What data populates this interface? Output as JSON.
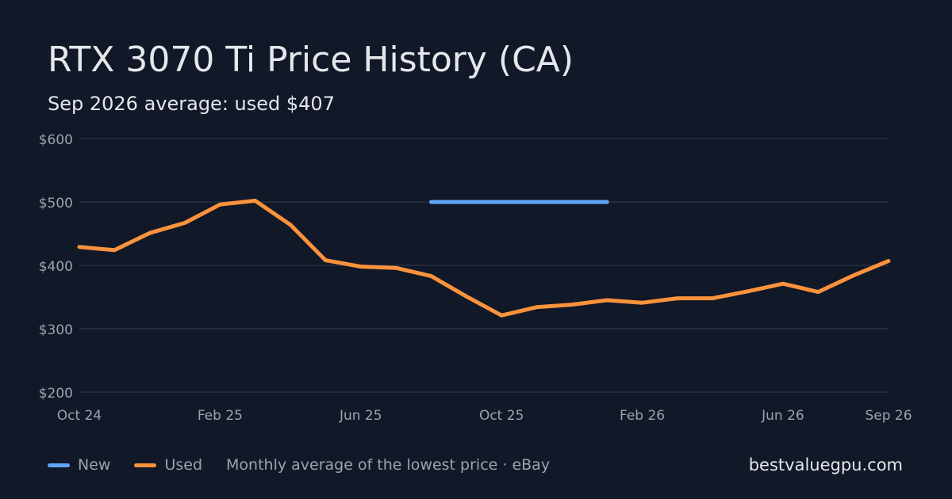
{
  "header": {
    "title": "RTX 3070 Ti Price History (CA)",
    "subtitle": "Sep 2026 average: used $407"
  },
  "legend": {
    "new_label": "New",
    "used_label": "Used",
    "note": "Monthly average of the lowest price · eBay"
  },
  "brand": "bestvaluegpu.com",
  "colors": {
    "background": "#111827",
    "grid": "#253041",
    "tick_text": "#9ca3af",
    "new": "#60a5fa",
    "used": "#fb923c"
  },
  "chart_data": {
    "type": "line",
    "x": [
      "2024-10",
      "2024-11",
      "2024-12",
      "2025-01",
      "2025-02",
      "2025-03",
      "2025-04",
      "2025-05",
      "2025-06",
      "2025-07",
      "2025-08",
      "2025-09",
      "2025-10",
      "2025-11",
      "2025-12",
      "2026-01",
      "2026-02",
      "2026-03",
      "2026-04",
      "2026-05",
      "2026-06",
      "2026-07",
      "2026-08",
      "2026-09"
    ],
    "x_ticks": [
      {
        "x": "2024-10",
        "label": "Oct 24"
      },
      {
        "x": "2025-02",
        "label": "Feb 25"
      },
      {
        "x": "2025-06",
        "label": "Jun 25"
      },
      {
        "x": "2025-10",
        "label": "Oct 25"
      },
      {
        "x": "2026-02",
        "label": "Feb 26"
      },
      {
        "x": "2026-06",
        "label": "Jun 26"
      },
      {
        "x": "2026-09",
        "label": "Sep 26"
      }
    ],
    "y_ticks": [
      200,
      300,
      400,
      500,
      600
    ],
    "y_tick_labels": [
      "$200",
      "$300",
      "$400",
      "$500",
      "$600"
    ],
    "ylim": [
      200,
      600
    ],
    "grid": true,
    "legend_position": "bottom-left",
    "series": [
      {
        "name": "New",
        "values": [
          null,
          null,
          null,
          null,
          null,
          null,
          null,
          null,
          null,
          null,
          500,
          500,
          500,
          500,
          500,
          500,
          null,
          null,
          null,
          null,
          null,
          null,
          null,
          null
        ]
      },
      {
        "name": "Used",
        "values": [
          429,
          424,
          451,
          467,
          496,
          502,
          464,
          408,
          398,
          396,
          383,
          351,
          321,
          334,
          338,
          345,
          341,
          348,
          348,
          359,
          371,
          358,
          384,
          407
        ]
      }
    ]
  }
}
